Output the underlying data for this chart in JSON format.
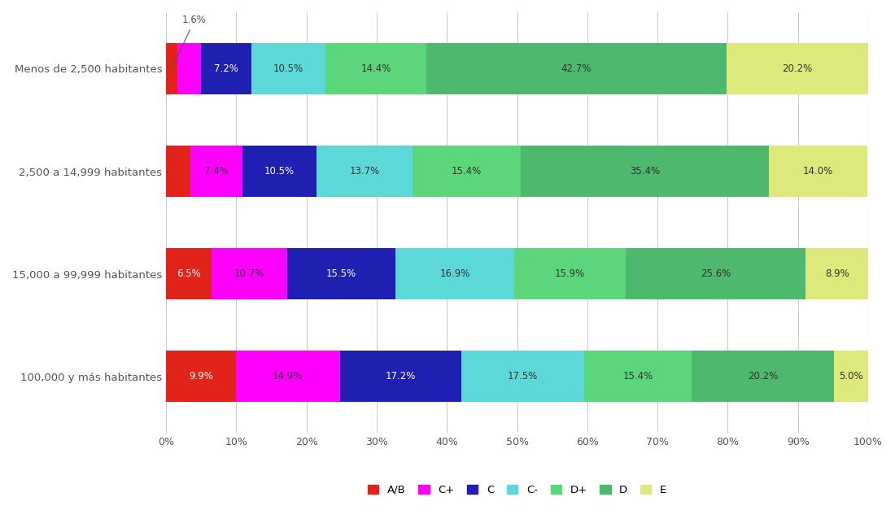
{
  "categories": [
    "100,000 y más habitantes",
    "15,000 a 99,999 habitantes",
    "2,500 a 14,999 habitantes",
    "Menos de 2,500 habitantes"
  ],
  "segments": [
    "A/B",
    "C+",
    "C",
    "C-",
    "D+",
    "D",
    "E"
  ],
  "colors": [
    "#e2231a",
    "#ff00ff",
    "#1f1fb2",
    "#5dd8d8",
    "#5cd67a",
    "#4db86e",
    "#dde97a"
  ],
  "values": [
    [
      9.9,
      14.9,
      17.2,
      17.5,
      15.4,
      20.2,
      5.0
    ],
    [
      6.5,
      10.7,
      15.5,
      16.9,
      15.9,
      25.6,
      8.9
    ],
    [
      3.5,
      7.4,
      10.5,
      13.7,
      15.4,
      35.4,
      14.0
    ],
    [
      1.6,
      3.4,
      7.2,
      10.5,
      14.4,
      42.7,
      20.2
    ]
  ],
  "background_color": "#ffffff",
  "grid_color": "#cccccc",
  "text_color": "#555555",
  "bar_height": 0.5,
  "figsize": [
    11.0,
    6.54
  ],
  "dpi": 100,
  "annotation_row": 3,
  "annotation_val": 1.6,
  "annotation_text": "1.6%"
}
